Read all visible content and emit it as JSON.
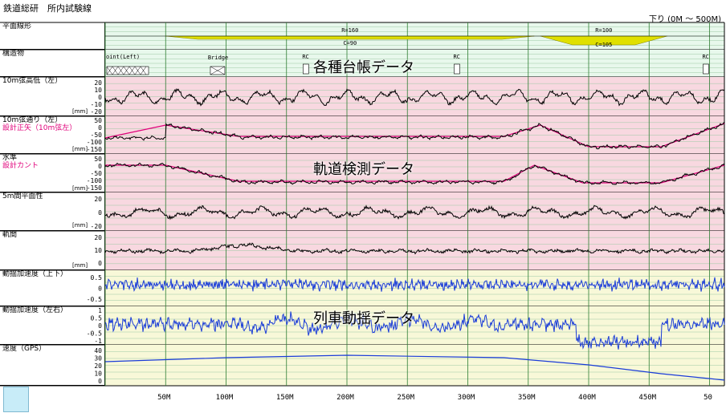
{
  "window": {
    "title": "鉄道総研　所内試験線",
    "direction": "下り (0M ～ 500M)"
  },
  "rows": [
    {
      "label": "平面線形",
      "sub": "",
      "unit": ""
    },
    {
      "label": "構造物",
      "sub": "",
      "unit": ""
    },
    {
      "label": "10m弦高低（左）",
      "sub": "",
      "unit": "[mm]"
    },
    {
      "label": "10m弦通り（左）",
      "sub": "設計正矢（10m弦左）",
      "unit": "[mm]"
    },
    {
      "label": "水準",
      "sub": "設計カント",
      "unit": "[mm]"
    },
    {
      "label": "5m間平面性",
      "sub": "",
      "unit": "[mm]"
    },
    {
      "label": "軌間",
      "sub": "",
      "unit": "[mm]"
    },
    {
      "label": "動揺加速度（上下）",
      "sub": "",
      "unit": ""
    },
    {
      "label": "動揺加速度（左右）",
      "sub": "",
      "unit": ""
    },
    {
      "label": "速度（GPS）",
      "sub": "",
      "unit": ""
    }
  ],
  "curves": [
    {
      "radius": "R=160",
      "cant": "C=90"
    },
    {
      "radius": "R=100",
      "cant": "C=105"
    }
  ],
  "structures": [
    "oint(Left)",
    "Bridge",
    "RC",
    "RC",
    "RC"
  ],
  "overlays": [
    "各種台帳データ",
    "軌道検測データ",
    "列車動揺データ"
  ],
  "ticks": {
    "elev": [
      "20",
      "10",
      "0",
      "-10",
      "-20"
    ],
    "align": [
      "50",
      "0",
      "-50",
      "-100",
      "-150"
    ],
    "cross": [
      "50",
      "0",
      "-50",
      "-100",
      "-150"
    ],
    "twist": [
      "20",
      "0",
      "-20"
    ],
    "gauge": [
      "20",
      "10",
      "0"
    ],
    "vert": [
      "0.5",
      "0",
      "-0.5"
    ],
    "lat": [
      "1",
      "0.5",
      "0",
      "-0.5",
      "-1"
    ],
    "speed": [
      "40",
      "30",
      "20",
      "10",
      "0"
    ]
  },
  "x_axis": [
    "50M",
    "100M",
    "150M",
    "200M",
    "250M",
    "300M",
    "350M",
    "400M",
    "450M",
    "50"
  ],
  "colors": {
    "pink_band": "#f8d8e0",
    "green_band": "#e8f8ec",
    "yellow_band": "#f8f8d8",
    "curve": "#e0e000",
    "design": "#e0007a",
    "signal": "#000000",
    "accel": "#1a3cd8",
    "grid": "#2e7d32"
  }
}
